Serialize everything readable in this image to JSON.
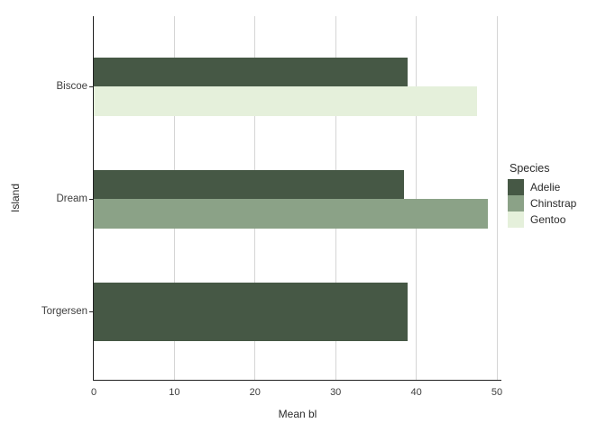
{
  "chart_data": {
    "type": "bar",
    "orientation": "horizontal",
    "title": "",
    "xlabel": "Mean bl",
    "ylabel": "Island",
    "categories": [
      "Biscoe",
      "Dream",
      "Torgersen"
    ],
    "series": [
      {
        "name": "Adelie",
        "color": "#465845",
        "values": [
          38.98,
          38.5,
          38.95
        ]
      },
      {
        "name": "Chinstrap",
        "color": "#8ba287",
        "values": [
          null,
          48.83,
          null
        ]
      },
      {
        "name": "Gentoo",
        "color": "#e5f0db",
        "values": [
          47.5,
          null,
          null
        ]
      }
    ],
    "x_ticks": [
      0,
      10,
      20,
      30,
      40,
      50
    ],
    "xlim": [
      0,
      50
    ],
    "grid": "vertical-major-only",
    "legend": {
      "title": "Species",
      "position": "right"
    },
    "colors": {
      "axis_line": "#212121",
      "gridline": "#d5d5d5",
      "tick_text": "#3d3d3d",
      "background": "#ffffff"
    }
  }
}
